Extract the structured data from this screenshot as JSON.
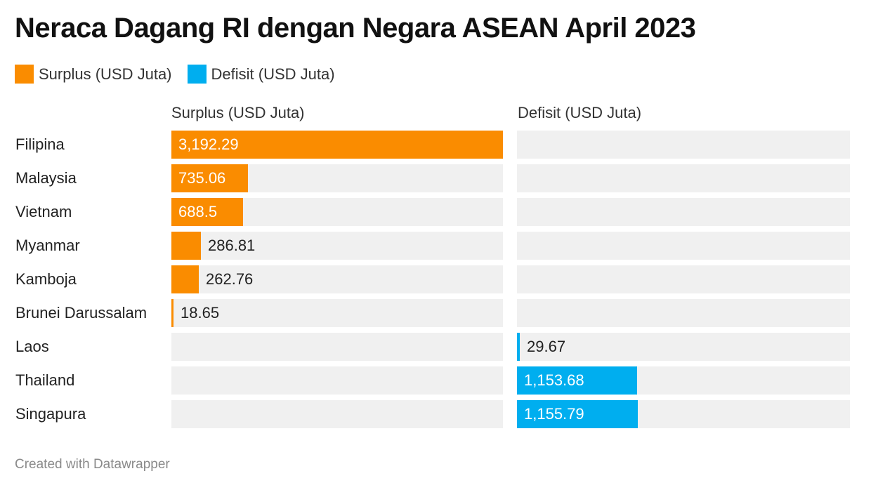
{
  "title": "Neraca Dagang RI dengan Negara ASEAN April 2023",
  "legend": [
    {
      "label": "Surplus (USD Juta)",
      "color": "#fa8c00"
    },
    {
      "label": "Defisit (USD Juta)",
      "color": "#00aeef"
    }
  ],
  "footer": "Created with Datawrapper",
  "chart_data": {
    "type": "bar",
    "title": "Neraca Dagang RI dengan Negara ASEAN April 2023",
    "categories": [
      "Filipina",
      "Malaysia",
      "Vietnam",
      "Myanmar",
      "Kamboja",
      "Brunei Darussalam",
      "Laos",
      "Thailand",
      "Singapura"
    ],
    "series": [
      {
        "name": "Surplus (USD Juta)",
        "color": "#fa8c00",
        "values": [
          3192.29,
          735.06,
          688.5,
          286.81,
          262.76,
          18.65,
          null,
          null,
          null
        ],
        "labels": [
          "3,192.29",
          "735.06",
          "688.5",
          "286.81",
          "262.76",
          "18.65",
          "",
          "",
          ""
        ]
      },
      {
        "name": "Defisit (USD Juta)",
        "color": "#00aeef",
        "values": [
          null,
          null,
          null,
          null,
          null,
          null,
          29.67,
          1153.68,
          1155.79
        ],
        "labels": [
          "",
          "",
          "",
          "",
          "",
          "",
          "29.67",
          "1,153.68",
          "1,155.79"
        ]
      }
    ],
    "xlim": [
      0,
      3192.29
    ],
    "grid": false,
    "legend_position": "top-left"
  }
}
